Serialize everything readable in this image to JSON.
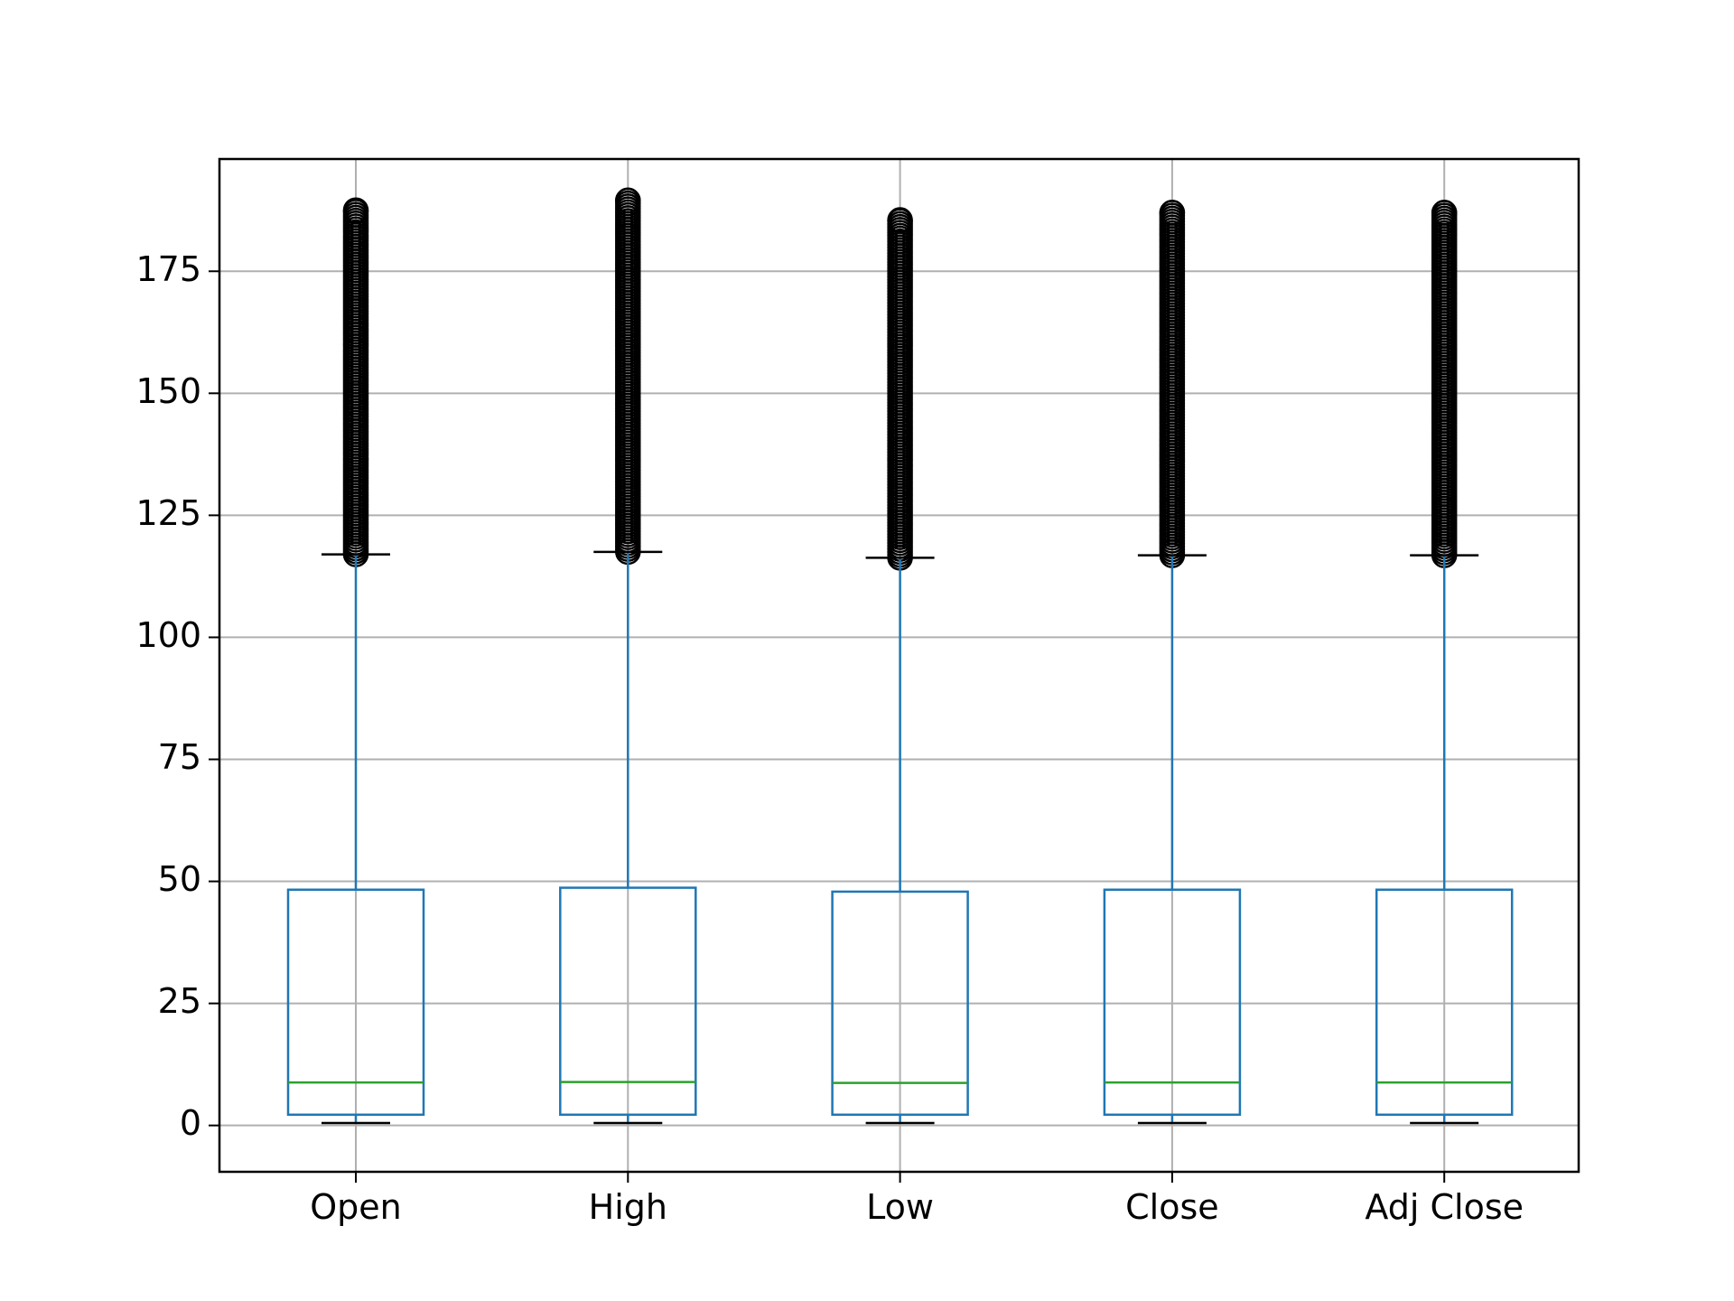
{
  "chart_data": {
    "type": "box",
    "categories": [
      "Open",
      "High",
      "Low",
      "Close",
      "Adj Close"
    ],
    "yticks": [
      0,
      25,
      50,
      75,
      100,
      125,
      150,
      175
    ],
    "ylim": [
      -9.5,
      198
    ],
    "grid": true,
    "title": "",
    "xlabel": "",
    "ylabel": "",
    "colors": {
      "box": "#1f77b4",
      "median": "#2ca02c",
      "whisker_cap": "#000000",
      "grid": "#b0b0b0",
      "outlier": "#000000"
    },
    "boxes": [
      {
        "name": "Open",
        "whisker_low": 0.5,
        "q1": 2.2,
        "median": 8.8,
        "q3": 48.3,
        "whisker_high": 117.0,
        "outliers_from": 117.0,
        "outliers_to": 187.5
      },
      {
        "name": "High",
        "whisker_low": 0.5,
        "q1": 2.2,
        "median": 8.9,
        "q3": 48.7,
        "whisker_high": 117.5,
        "outliers_from": 117.5,
        "outliers_to": 189.5
      },
      {
        "name": "Low",
        "whisker_low": 0.5,
        "q1": 2.2,
        "median": 8.7,
        "q3": 47.9,
        "whisker_high": 116.3,
        "outliers_from": 116.3,
        "outliers_to": 185.5
      },
      {
        "name": "Close",
        "whisker_low": 0.5,
        "q1": 2.2,
        "median": 8.8,
        "q3": 48.3,
        "whisker_high": 116.8,
        "outliers_from": 116.8,
        "outliers_to": 187.0
      },
      {
        "name": "Adj Close",
        "whisker_low": 0.5,
        "q1": 2.2,
        "median": 8.8,
        "q3": 48.3,
        "whisker_high": 116.8,
        "outliers_from": 116.8,
        "outliers_to": 187.0
      }
    ]
  }
}
